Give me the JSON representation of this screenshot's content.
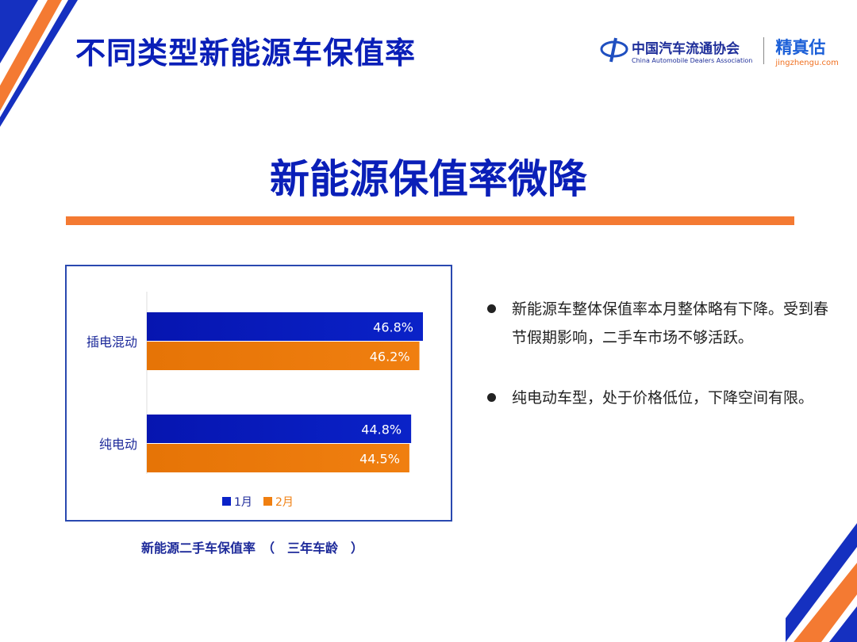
{
  "header": {
    "title": "不同类型新能源车保值率",
    "logo_cada_cn": "中国汽车流通协会",
    "logo_cada_en": "China Automobile Dealers Association",
    "logo_jzg_cn": "精真估",
    "logo_jzg_en": "jingzhengu.com"
  },
  "headline": "新能源保值率微降",
  "colors": {
    "blue": "#0a22c8",
    "orange": "#f07f10",
    "accent_line": "#f47a32"
  },
  "chart_data": {
    "type": "bar",
    "orientation": "horizontal",
    "categories": [
      "插电混动",
      "纯电动"
    ],
    "series": [
      {
        "name": "1月",
        "values": [
          46.8,
          44.8
        ],
        "labels": [
          "46.8%",
          "44.8%"
        ]
      },
      {
        "name": "2月",
        "values": [
          46.2,
          44.5
        ],
        "labels": [
          "46.2%",
          "44.5%"
        ]
      }
    ],
    "xlim": [
      0,
      50
    ],
    "legend": "bottom",
    "grid": false
  },
  "caption": "新能源二手车保值率　（　三年车龄　）",
  "bullets": [
    "新能源车整体保值率本月整体略有下降。受到春节假期影响，二手车市场不够活跃。",
    "纯电动车型，处于价格低位，下降空间有限。"
  ]
}
